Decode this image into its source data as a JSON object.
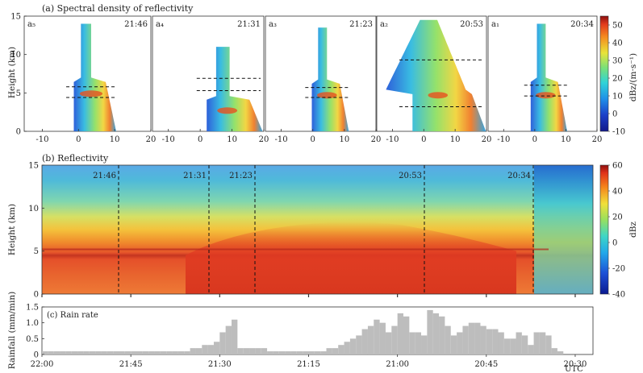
{
  "chart_data": [
    {
      "type": "heatmap",
      "panel": "a",
      "title": "(a) Spectral density of reflectivity",
      "ylabel": "Height (km)",
      "xlim": [
        -15,
        20
      ],
      "ylim": [
        0,
        15
      ],
      "x_ticks": [
        -10,
        0,
        10,
        20
      ],
      "y_ticks": [
        0,
        5,
        10,
        15
      ],
      "colorbar": {
        "label": "dBz/(m·s⁻¹)",
        "range": [
          -10,
          55
        ],
        "ticks": [
          -10,
          0,
          10,
          20,
          30,
          40,
          50
        ]
      },
      "subpanels": [
        {
          "label": "a₅",
          "time": "21:46",
          "dashed_heights": [
            5.8,
            4.4
          ]
        },
        {
          "label": "a₄",
          "time": "21:31",
          "dashed_heights": [
            6.9,
            5.3
          ]
        },
        {
          "label": "a₃",
          "time": "21:23",
          "dashed_heights": [
            5.7,
            4.4
          ]
        },
        {
          "label": "a₂",
          "time": "20:53",
          "dashed_heights": [
            9.3,
            3.2
          ]
        },
        {
          "label": "a₁",
          "time": "20:34",
          "dashed_heights": [
            6.0,
            4.6
          ]
        }
      ]
    },
    {
      "type": "heatmap",
      "panel": "b",
      "title": "(b) Reflectivity",
      "ylabel": "Height (km)",
      "ylim": [
        0,
        15
      ],
      "y_ticks": [
        0,
        5,
        10,
        15
      ],
      "colorbar": {
        "label": "dBz",
        "range": [
          -40,
          60
        ],
        "ticks": [
          -40,
          -20,
          0,
          20,
          40,
          60
        ]
      },
      "markers": [
        "21:46",
        "21:31",
        "21:23",
        "20:53",
        "20:34"
      ]
    },
    {
      "type": "bar",
      "panel": "c",
      "title": "(c) Rain rate",
      "ylabel": "Rainfall (mm/min)",
      "ylim": [
        0,
        1.5
      ],
      "y_ticks": [
        "0",
        "0.5",
        "1.0",
        "1.5"
      ],
      "xlim_minutes_before_2200": [
        0,
        93
      ],
      "x_ticks": [
        "22:00",
        "21:45",
        "21:30",
        "21:15",
        "21:00",
        "20:45",
        "20:30"
      ],
      "x_unit": "UTC",
      "values": [
        0.1,
        0.1,
        0.1,
        0.1,
        0.1,
        0.1,
        0.1,
        0.1,
        0.1,
        0.1,
        0.1,
        0.1,
        0.1,
        0.1,
        0.1,
        0.1,
        0.1,
        0.1,
        0.1,
        0.1,
        0.1,
        0.1,
        0.1,
        0.1,
        0.1,
        0.2,
        0.2,
        0.3,
        0.3,
        0.4,
        0.7,
        0.9,
        1.1,
        0.2,
        0.2,
        0.2,
        0.2,
        0.2,
        0.1,
        0.1,
        0.1,
        0.1,
        0.1,
        0.1,
        0.1,
        0.1,
        0.1,
        0.1,
        0.2,
        0.2,
        0.3,
        0.4,
        0.5,
        0.6,
        0.8,
        0.9,
        1.1,
        1.0,
        0.7,
        0.9,
        1.3,
        1.2,
        0.7,
        0.7,
        0.6,
        1.4,
        1.3,
        1.2,
        0.9,
        0.6,
        0.7,
        0.9,
        1.0,
        1.0,
        0.9,
        0.8,
        0.8,
        0.7,
        0.5,
        0.5,
        0.7,
        0.6,
        0.3,
        0.7,
        0.7,
        0.6,
        0.2,
        0.1,
        0,
        0,
        0,
        0,
        0
      ]
    }
  ]
}
